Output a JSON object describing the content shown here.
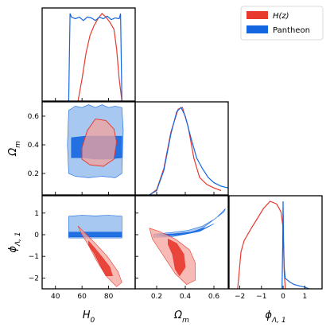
{
  "colors": {
    "hz": "#e8392e",
    "hz_fill_outer": "#f4a39c",
    "hz_fill_inner": "#e8392e",
    "pantheon": "#1466e0",
    "pantheon_fill_outer": "#9dc2ee",
    "pantheon_fill_inner": "#1466e0",
    "axes": "#000000"
  },
  "chart_data": {
    "type": "corner",
    "parameters": [
      {
        "key": "H0",
        "label_base": "H",
        "label_sub": "0",
        "range": [
          30,
          100
        ],
        "ticks": [
          40,
          60,
          80
        ]
      },
      {
        "key": "Om",
        "label_base": "Ω",
        "label_sub": "m",
        "range": [
          0.05,
          0.7
        ],
        "ticks": [
          0.2,
          0.4,
          0.6
        ]
      },
      {
        "key": "phi",
        "label_base": "ϕ",
        "label_sub": "Λ, 1",
        "range": [
          -2.5,
          1.8
        ],
        "ticks": [
          -2,
          -1,
          0,
          1
        ]
      }
    ],
    "legend": {
      "placement": "top-right",
      "entries": [
        {
          "series": "hz",
          "base": "H(z)",
          "italic": true
        },
        {
          "series": "pantheon",
          "base": "Pantheon",
          "italic": false
        }
      ]
    },
    "series": {
      "hz": {
        "marginals": {
          "H0": {
            "x": [
              57,
              60,
              63,
              66,
              69,
              72,
              75,
              78,
              81,
              84,
              86,
              88,
              90
            ],
            "y": [
              0,
              0.25,
              0.55,
              0.75,
              0.86,
              0.94,
              1.0,
              0.96,
              0.9,
              0.82,
              0.6,
              0.25,
              0
            ]
          },
          "Om": {
            "x": [
              0.15,
              0.2,
              0.25,
              0.3,
              0.35,
              0.38,
              0.42,
              0.46,
              0.5,
              0.55,
              0.6,
              0.65
            ],
            "y": [
              0,
              0.06,
              0.3,
              0.72,
              0.98,
              1.0,
              0.78,
              0.42,
              0.2,
              0.12,
              0.08,
              0.05
            ]
          },
          "phi": {
            "x": [
              -2.1,
              -1.95,
              -1.8,
              -1.5,
              -1.2,
              -0.9,
              -0.6,
              -0.3,
              -0.1,
              0.0,
              0.05,
              0.1
            ],
            "y": [
              0,
              0.42,
              0.55,
              0.68,
              0.8,
              0.92,
              1.0,
              0.97,
              0.88,
              0.7,
              0.2,
              0
            ]
          }
        },
        "contours": {
          "Om_vs_H0": {
            "inner": null,
            "outer": [
              [
                60,
                0.38
              ],
              [
                64,
                0.5
              ],
              [
                70,
                0.58
              ],
              [
                78,
                0.57
              ],
              [
                84,
                0.51
              ],
              [
                86,
                0.42
              ],
              [
                84,
                0.3
              ],
              [
                76,
                0.25
              ],
              [
                66,
                0.26
              ],
              [
                60,
                0.3
              ]
            ]
          },
          "phi_vs_H0": {
            "outer": [
              [
                57,
                0.4
              ],
              [
                62,
                0.1
              ],
              [
                70,
                -0.4
              ],
              [
                79,
                -1.0
              ],
              [
                87,
                -1.7
              ],
              [
                90,
                -2.2
              ],
              [
                86,
                -2.4
              ],
              [
                78,
                -1.9
              ],
              [
                71,
                -1.2
              ],
              [
                65,
                -0.5
              ],
              [
                60,
                0.0
              ]
            ],
            "inner": [
              [
                65,
                -0.3
              ],
              [
                70,
                -0.65
              ],
              [
                76,
                -1.1
              ],
              [
                81,
                -1.5
              ],
              [
                83,
                -1.9
              ],
              [
                78,
                -1.9
              ],
              [
                74,
                -1.45
              ],
              [
                69,
                -0.85
              ],
              [
                65,
                -0.5
              ]
            ]
          },
          "phi_vs_Om": {
            "outer": [
              [
                0.15,
                0.3
              ],
              [
                0.22,
                0.15
              ],
              [
                0.33,
                -0.2
              ],
              [
                0.43,
                -0.7
              ],
              [
                0.47,
                -1.3
              ],
              [
                0.47,
                -2.1
              ],
              [
                0.41,
                -2.3
              ],
              [
                0.33,
                -1.8
              ],
              [
                0.24,
                -0.9
              ],
              [
                0.17,
                -0.2
              ]
            ],
            "inner": [
              [
                0.28,
                -0.2
              ],
              [
                0.34,
                -0.4
              ],
              [
                0.39,
                -0.9
              ],
              [
                0.4,
                -1.5
              ],
              [
                0.36,
                -1.9
              ],
              [
                0.33,
                -1.6
              ],
              [
                0.31,
                -0.9
              ],
              [
                0.28,
                -0.45
              ]
            ]
          }
        }
      },
      "pantheon": {
        "marginals": {
          "H0": {
            "x": [
              50,
              51,
              52,
              55,
              58,
              61,
              64,
              67,
              70,
              73,
              76,
              79,
              82,
              85,
              88,
              89,
              90
            ],
            "y": [
              0,
              1.0,
              0.96,
              0.94,
              0.96,
              0.92,
              0.96,
              0.95,
              0.92,
              0.96,
              0.94,
              0.97,
              0.93,
              0.95,
              0.94,
              1.0,
              0
            ]
          },
          "Om": {
            "x": [
              0.15,
              0.2,
              0.25,
              0.3,
              0.34,
              0.37,
              0.4,
              0.44,
              0.48,
              0.52,
              0.56,
              0.6,
              0.65,
              0.7
            ],
            "y": [
              0,
              0.05,
              0.28,
              0.7,
              0.95,
              1.0,
              0.9,
              0.65,
              0.42,
              0.3,
              0.2,
              0.14,
              0.1,
              0.08
            ]
          },
          "phi": {
            "x": [
              -0.05,
              -0.02,
              0.0,
              0.02,
              0.05,
              0.1,
              0.3,
              0.5,
              0.8,
              1.0,
              1.2
            ],
            "y": [
              0,
              0.5,
              1.0,
              0.55,
              0.25,
              0.12,
              0.08,
              0.05,
              0.03,
              0.02,
              0
            ]
          }
        },
        "contours": {
          "Om_vs_H0": {
            "outer": [
              [
                50,
                0.64
              ],
              [
                55,
                0.67
              ],
              [
                60,
                0.66
              ],
              [
                65,
                0.68
              ],
              [
                70,
                0.66
              ],
              [
                75,
                0.68
              ],
              [
                80,
                0.66
              ],
              [
                85,
                0.67
              ],
              [
                90,
                0.66
              ],
              [
                91,
                0.5
              ],
              [
                90,
                0.2
              ],
              [
                85,
                0.17
              ],
              [
                75,
                0.18
              ],
              [
                65,
                0.17
              ],
              [
                55,
                0.18
              ],
              [
                50,
                0.2
              ],
              [
                49,
                0.4
              ]
            ],
            "inner": [
              [
                52,
                0.45
              ],
              [
                62,
                0.46
              ],
              [
                72,
                0.46
              ],
              [
                82,
                0.46
              ],
              [
                90,
                0.46
              ],
              [
                90,
                0.31
              ],
              [
                80,
                0.3
              ],
              [
                70,
                0.3
              ],
              [
                60,
                0.31
              ],
              [
                52,
                0.31
              ]
            ]
          },
          "phi_vs_H0": {
            "outer": [
              [
                50,
                0.85
              ],
              [
                60,
                0.9
              ],
              [
                70,
                0.87
              ],
              [
                80,
                0.9
              ],
              [
                90,
                0.86
              ],
              [
                90,
                -0.15
              ],
              [
                50,
                -0.15
              ]
            ],
            "inner": [
              [
                50,
                0.12
              ],
              [
                90,
                0.12
              ],
              [
                90,
                -0.1
              ],
              [
                50,
                -0.1
              ]
            ]
          },
          "phi_vs_Om": {
            "outer": [
              [
                0.18,
                0.02
              ],
              [
                0.3,
                0.1
              ],
              [
                0.42,
                0.2
              ],
              [
                0.52,
                0.4
              ],
              [
                0.6,
                0.7
              ],
              [
                0.67,
                1.05
              ],
              [
                0.68,
                1.2
              ],
              [
                0.62,
                0.8
              ],
              [
                0.52,
                0.3
              ],
              [
                0.42,
                0.05
              ],
              [
                0.3,
                -0.1
              ],
              [
                0.18,
                -0.12
              ]
            ],
            "inner": [
              [
                0.2,
                0.0
              ],
              [
                0.32,
                0.04
              ],
              [
                0.44,
                0.12
              ],
              [
                0.54,
                0.32
              ],
              [
                0.6,
                0.5
              ],
              [
                0.5,
                0.15
              ],
              [
                0.38,
                0.0
              ],
              [
                0.25,
                -0.06
              ]
            ]
          }
        }
      }
    }
  }
}
